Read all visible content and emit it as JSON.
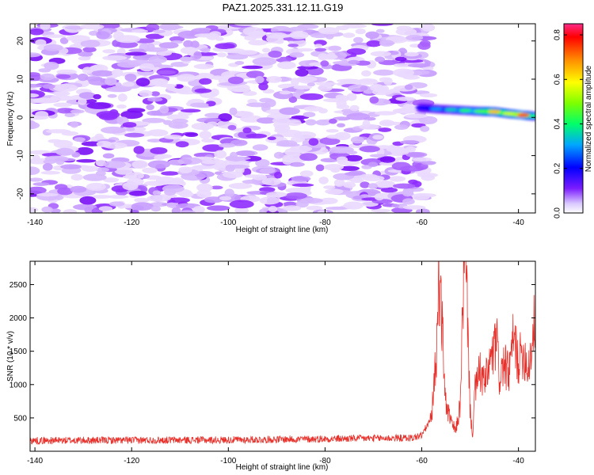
{
  "title": "PAZ1.2025.331.12.11.G19",
  "chart_data": [
    {
      "type": "heatmap",
      "name": "spectrogram",
      "xlabel": "Height of straight line (km)",
      "ylabel": "Frequency (Hz)",
      "xlim": [
        -141,
        -36.5
      ],
      "ylim": [
        -25,
        24.5
      ],
      "xticks": [
        -140,
        -120,
        -100,
        -80,
        -60,
        -40
      ],
      "yticks": [
        -20,
        -10,
        0,
        10,
        20
      ],
      "noise_region_km": [
        -141,
        -58.5
      ],
      "noise_amplitude_range": [
        0.0,
        0.12
      ],
      "signal_track": {
        "x_km": [
          -60,
          -57,
          -54,
          -51,
          -48,
          -45,
          -42,
          -39,
          -36.5
        ],
        "freq_hz": [
          2.5,
          2.2,
          2.0,
          1.8,
          1.6,
          1.5,
          1.0,
          0.6,
          0.3
        ],
        "amplitude": [
          0.2,
          0.3,
          0.35,
          0.42,
          0.45,
          0.65,
          0.55,
          0.8,
          0.4
        ]
      },
      "colorbar": {
        "label": "Normalized spectral amplitude",
        "range": [
          0.0,
          0.85
        ],
        "ticks": [
          "0.0",
          "0.2",
          "0.4",
          "0.6",
          "0.8"
        ]
      }
    },
    {
      "type": "line",
      "name": "snr",
      "color": "#e8302a",
      "xlabel": "Height of straight line (km)",
      "ylabel": "SNR (10 * v/v)",
      "xlim": [
        -141,
        -36.5
      ],
      "ylim": [
        0,
        2850
      ],
      "xticks": [
        -140,
        -120,
        -100,
        -80,
        -60,
        -40
      ],
      "yticks": [
        500,
        1000,
        1500,
        2000,
        2500
      ],
      "x": [
        -141,
        -100,
        -62,
        -60,
        -58,
        -57,
        -56.5,
        -56,
        -55.5,
        -55,
        -54,
        -53,
        -52,
        -51.5,
        -51,
        -50.5,
        -50,
        -49.5,
        -49,
        -48,
        -47,
        -46,
        -45,
        -44.5,
        -44,
        -43,
        -42,
        -41,
        -40,
        -39,
        -38,
        -37,
        -36.5
      ],
      "y": [
        160,
        170,
        200,
        240,
        500,
        1400,
        2650,
        2250,
        1400,
        700,
        450,
        300,
        700,
        2300,
        2820,
        2000,
        600,
        250,
        900,
        1200,
        1000,
        1300,
        1500,
        1700,
        1100,
        1300,
        1150,
        1700,
        1350,
        1500,
        1250,
        1700,
        2100
      ]
    }
  ]
}
